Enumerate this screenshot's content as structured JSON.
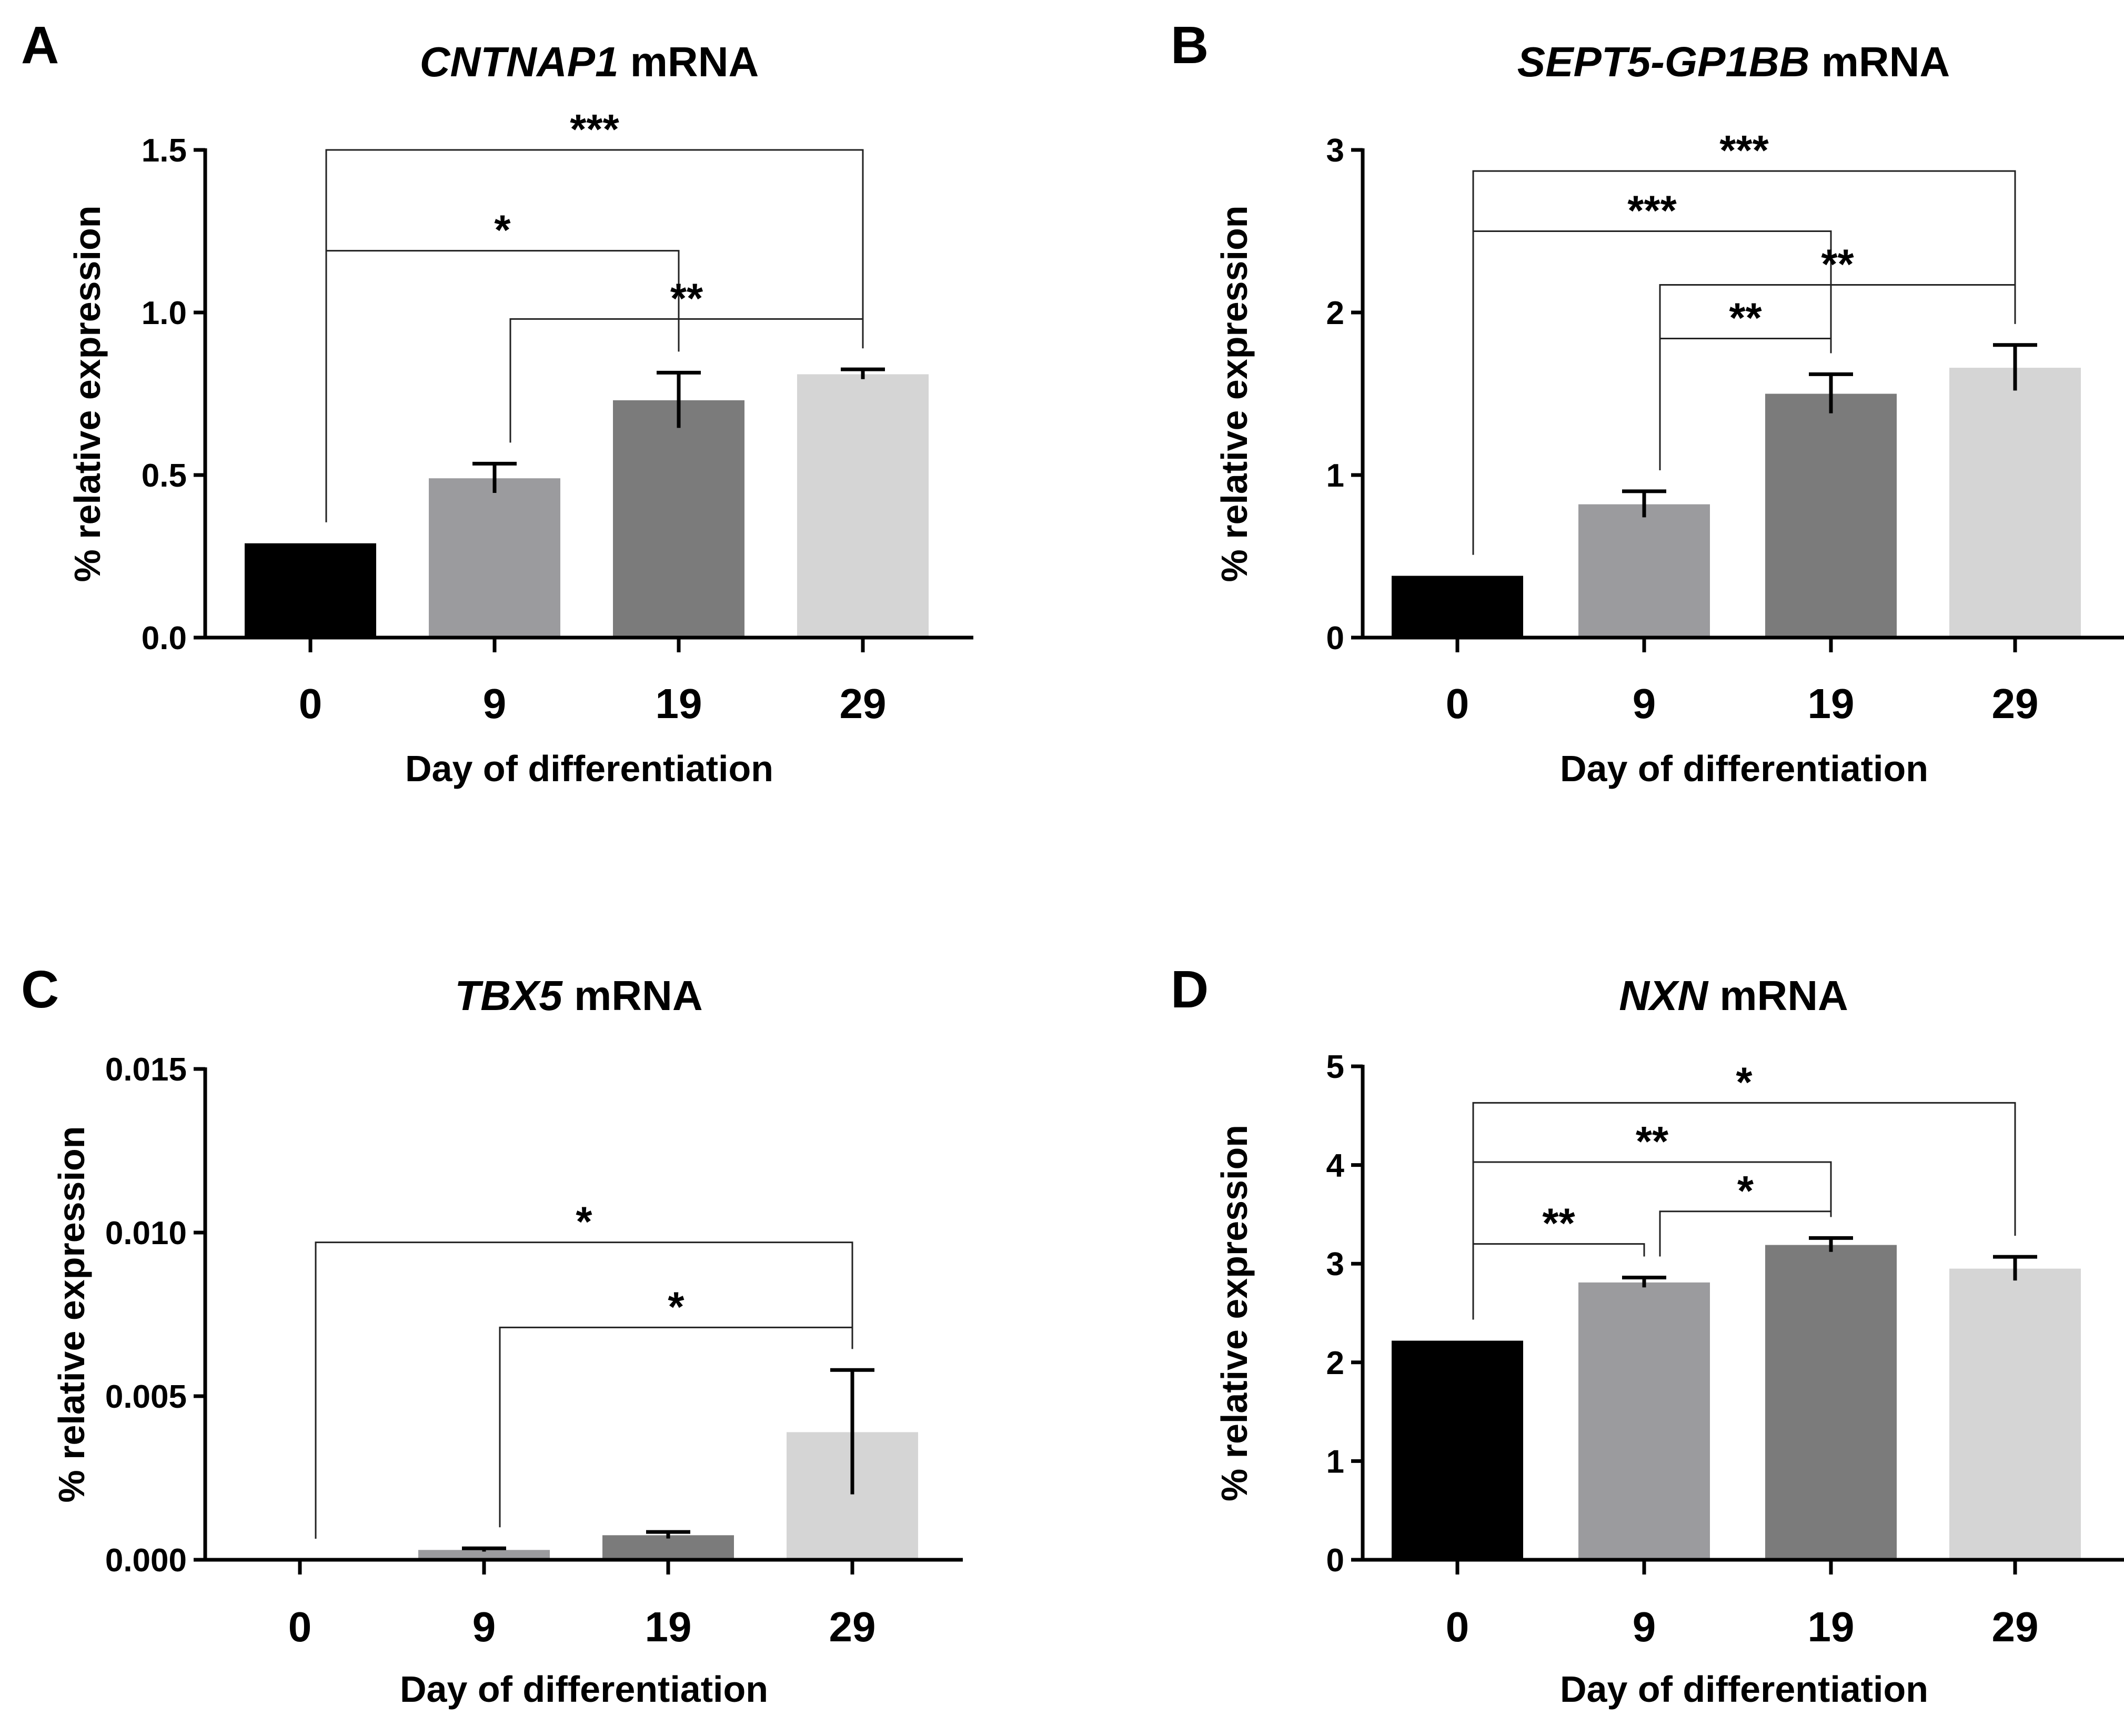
{
  "chart_data": [
    {
      "type": "bar",
      "panel_letter": "A",
      "title_gene": "CNTNAP1",
      "title_suffix": " mRNA",
      "categories": [
        "0",
        "9",
        "19",
        "29"
      ],
      "values": [
        0.29,
        0.49,
        0.73,
        0.81
      ],
      "errors": [
        0.0,
        0.045,
        0.085,
        0.015
      ],
      "bar_colors": [
        "#000000",
        "#9b9b9e",
        "#7b7b7b",
        "#d5d5d5"
      ],
      "ylim": [
        0,
        1.5
      ],
      "yticks": [
        0.0,
        0.5,
        1.0,
        1.5
      ],
      "ytick_labels": [
        "0.0",
        "0.5",
        "1.0",
        "1.5"
      ],
      "xlabel": "Day of differentiation",
      "ylabel": "% relative expression",
      "significance": [
        {
          "from": 0,
          "to": 3,
          "label": "***",
          "y": 1.5
        },
        {
          "from": 0,
          "to": 2,
          "label": "*",
          "y": 1.19
        },
        {
          "from": 1,
          "to": 3,
          "label": "**",
          "y": 0.98
        }
      ]
    },
    {
      "type": "bar",
      "panel_letter": "B",
      "title_gene": "SEPT5-GP1BB",
      "title_suffix": " mRNA",
      "categories": [
        "0",
        "9",
        "19",
        "29"
      ],
      "values": [
        0.38,
        0.82,
        1.5,
        1.66
      ],
      "errors": [
        0.0,
        0.08,
        0.12,
        0.14
      ],
      "bar_colors": [
        "#000000",
        "#9b9b9e",
        "#7b7b7b",
        "#d5d5d5"
      ],
      "ylim": [
        0,
        3
      ],
      "yticks": [
        0,
        1,
        2,
        3
      ],
      "ytick_labels": [
        "0",
        "1",
        "2",
        "3"
      ],
      "xlabel": "Day of differentiation",
      "ylabel": "% relative expression",
      "significance": [
        {
          "from": 0,
          "to": 3,
          "label": "***",
          "y": 2.87
        },
        {
          "from": 0,
          "to": 2,
          "label": "***",
          "y": 2.5
        },
        {
          "from": 1,
          "to": 3,
          "label": "**",
          "y": 2.17
        },
        {
          "from": 1,
          "to": 2,
          "label": "**",
          "y": 1.84
        }
      ]
    },
    {
      "type": "bar",
      "panel_letter": "C",
      "title_gene": "TBX5",
      "title_suffix": " mRNA",
      "categories": [
        "0",
        "9",
        "19",
        "29"
      ],
      "values": [
        0.0,
        0.0003,
        0.00075,
        0.0039
      ],
      "errors": [
        0.0,
        5e-05,
        0.0001,
        0.0019
      ],
      "bar_colors": [
        "#000000",
        "#9b9b9e",
        "#7b7b7b",
        "#d5d5d5"
      ],
      "ylim": [
        0,
        0.015
      ],
      "yticks": [
        0.0,
        0.005,
        0.01,
        0.015
      ],
      "ytick_labels": [
        "0.000",
        "0.005",
        "0.010",
        "0.015"
      ],
      "xlabel": "Day of differentiation",
      "ylabel": "% relative expression",
      "significance": [
        {
          "from": 0,
          "to": 3,
          "label": "*",
          "y": 0.0097
        },
        {
          "from": 1,
          "to": 3,
          "label": "*",
          "y": 0.0071
        }
      ]
    },
    {
      "type": "bar",
      "panel_letter": "D",
      "title_gene": "NXN",
      "title_suffix": " mRNA",
      "categories": [
        "0",
        "9",
        "19",
        "29"
      ],
      "values": [
        2.22,
        2.81,
        3.19,
        2.95
      ],
      "errors": [
        0.0,
        0.05,
        0.07,
        0.12
      ],
      "bar_colors": [
        "#000000",
        "#9b9b9e",
        "#7b7b7b",
        "#d5d5d5"
      ],
      "ylim": [
        0,
        5
      ],
      "yticks": [
        0,
        1,
        2,
        3,
        4,
        5
      ],
      "ytick_labels": [
        "0",
        "1",
        "2",
        "3",
        "4",
        "5"
      ],
      "xlabel": "Day of differentiation",
      "ylabel": "% relative expression",
      "significance": [
        {
          "from": 0,
          "to": 3,
          "label": "*",
          "y": 4.63
        },
        {
          "from": 0,
          "to": 2,
          "label": "**",
          "y": 4.03
        },
        {
          "from": 1,
          "to": 2,
          "label": "*",
          "y": 3.53
        },
        {
          "from": 0,
          "to": 1,
          "label": "**",
          "y": 3.2
        }
      ]
    }
  ]
}
